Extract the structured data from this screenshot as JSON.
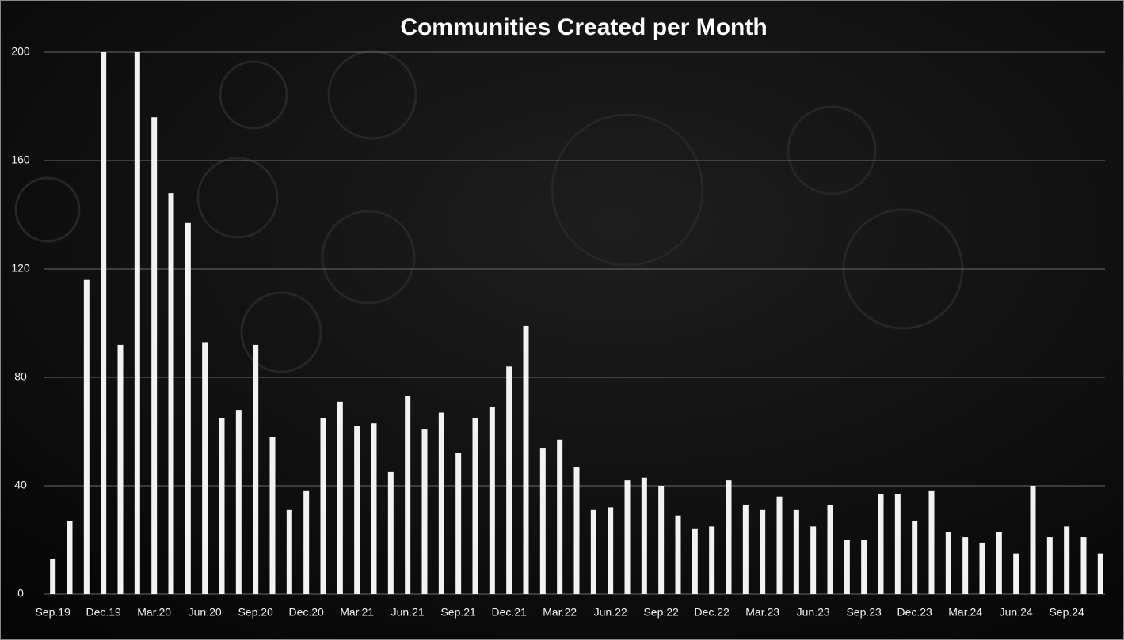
{
  "chart_data": {
    "type": "bar",
    "title": "Communities Created per Month",
    "categories": [
      "Sep.19",
      null,
      null,
      "Dec.19",
      null,
      null,
      "Mar.20",
      null,
      null,
      "Jun.20",
      null,
      null,
      "Sep.20",
      null,
      null,
      "Dec.20",
      null,
      null,
      "Mar.21",
      null,
      null,
      "Jun.21",
      null,
      null,
      "Sep.21",
      null,
      null,
      "Dec.21",
      null,
      null,
      "Mar.22",
      null,
      null,
      "Jun.22",
      null,
      null,
      "Sep.22",
      null,
      null,
      "Dec.22",
      null,
      null,
      "Mar.23",
      null,
      null,
      "Jun.23",
      null,
      null,
      "Sep.23",
      null,
      null,
      "Dec.23",
      null,
      null,
      "Mar.24",
      null,
      null,
      "Jun.24",
      null,
      null,
      "Sep.24",
      null,
      null
    ],
    "values": [
      13,
      27,
      116,
      200,
      92,
      200,
      176,
      148,
      137,
      93,
      65,
      68,
      92,
      58,
      31,
      38,
      65,
      71,
      62,
      63,
      45,
      73,
      61,
      67,
      52,
      65,
      69,
      84,
      99,
      54,
      57,
      47,
      31,
      32,
      42,
      43,
      40,
      29,
      24,
      25,
      42,
      33,
      31,
      36,
      31,
      25,
      33,
      20,
      20,
      37,
      37,
      27,
      38,
      23,
      21,
      19,
      23,
      15,
      40,
      21,
      25,
      21,
      15
    ],
    "color": "#f2f2f2",
    "ylim": [
      0,
      200
    ],
    "yticks": [
      0,
      40,
      80,
      120,
      160,
      200
    ],
    "grid": true
  }
}
